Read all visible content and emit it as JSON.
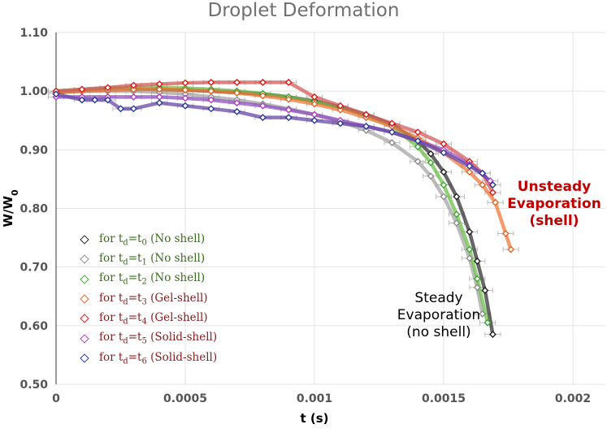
{
  "chart_data": {
    "type": "scatter",
    "title": "Droplet Deformation",
    "xlabel": "t (s)",
    "ylabel": "W/W0",
    "xlim": [
      0,
      0.002
    ],
    "ylim": [
      0.5,
      1.1
    ],
    "xticks": [
      "0",
      "0.0005",
      "0.001",
      "0.0015",
      "0.002"
    ],
    "yticks": [
      "0.50",
      "0.60",
      "0.70",
      "0.80",
      "0.90",
      "1.00",
      "1.10"
    ],
    "grid": true,
    "legend_placement": "bottom-left",
    "series": [
      {
        "name": "for td=t0 (No shell)",
        "sub": "0",
        "label_color": "#3a6b1f",
        "color": "#222222",
        "line_color": "#333333",
        "points": [
          [
            0,
            0.998
          ],
          [
            0.0001,
            1.0
          ],
          [
            0.0002,
            1.002
          ],
          [
            0.0003,
            1.003
          ],
          [
            0.0004,
            1.003
          ],
          [
            0.0005,
            1.002
          ],
          [
            0.0006,
            1.0
          ],
          [
            0.0007,
            0.998
          ],
          [
            0.0008,
            0.995
          ],
          [
            0.0009,
            0.99
          ],
          [
            0.001,
            0.983
          ],
          [
            0.0011,
            0.973
          ],
          [
            0.0012,
            0.96
          ],
          [
            0.0013,
            0.943
          ],
          [
            0.0014,
            0.915
          ],
          [
            0.00145,
            0.893
          ],
          [
            0.0015,
            0.862
          ],
          [
            0.00155,
            0.82
          ],
          [
            0.0016,
            0.76
          ],
          [
            0.00163,
            0.71
          ],
          [
            0.00166,
            0.66
          ],
          [
            0.00169,
            0.585
          ]
        ]
      },
      {
        "name": "for td=t1 (No shell)",
        "sub": "1",
        "label_color": "#3a6b1f",
        "color": "#8c8c8c",
        "line_color": "#a6a6a6",
        "points": [
          [
            0,
            1.0
          ],
          [
            0.0001,
            1.0
          ],
          [
            0.0002,
            1.0
          ],
          [
            0.0003,
            1.0
          ],
          [
            0.0004,
            0.998
          ],
          [
            0.0005,
            0.995
          ],
          [
            0.0006,
            0.99
          ],
          [
            0.0007,
            0.985
          ],
          [
            0.0008,
            0.978
          ],
          [
            0.0009,
            0.97
          ],
          [
            0.001,
            0.96
          ],
          [
            0.0011,
            0.948
          ],
          [
            0.0012,
            0.933
          ],
          [
            0.0013,
            0.912
          ],
          [
            0.0014,
            0.88
          ],
          [
            0.00145,
            0.855
          ],
          [
            0.0015,
            0.82
          ],
          [
            0.00155,
            0.775
          ],
          [
            0.0016,
            0.715
          ],
          [
            0.00163,
            0.665
          ],
          [
            0.00165,
            0.62
          ]
        ]
      },
      {
        "name": "for td=t2 (No shell)",
        "sub": "2",
        "label_color": "#3a6b1f",
        "color": "#3fa535",
        "line_color": "#6cc04a",
        "points": [
          [
            0,
            1.0
          ],
          [
            0.0001,
            1.003
          ],
          [
            0.0002,
            1.005
          ],
          [
            0.0003,
            1.006
          ],
          [
            0.0004,
            1.006
          ],
          [
            0.0005,
            1.005
          ],
          [
            0.0006,
            1.003
          ],
          [
            0.0007,
            1.0
          ],
          [
            0.0008,
            0.996
          ],
          [
            0.0009,
            0.99
          ],
          [
            0.001,
            0.982
          ],
          [
            0.0011,
            0.972
          ],
          [
            0.0012,
            0.958
          ],
          [
            0.0013,
            0.94
          ],
          [
            0.0014,
            0.905
          ],
          [
            0.00145,
            0.878
          ],
          [
            0.0015,
            0.84
          ],
          [
            0.00155,
            0.79
          ],
          [
            0.0016,
            0.73
          ],
          [
            0.00163,
            0.68
          ],
          [
            0.00167,
            0.605
          ]
        ]
      },
      {
        "name": "for td=t3 (Gel-shell)",
        "sub": "3",
        "label_color": "#8b1a1a",
        "color": "#e0662a",
        "line_color": "#f07a3a",
        "points": [
          [
            0,
            0.998
          ],
          [
            0.0001,
            1.0
          ],
          [
            0.0002,
            1.002
          ],
          [
            0.0003,
            1.003
          ],
          [
            0.0004,
            1.003
          ],
          [
            0.0005,
            1.002
          ],
          [
            0.0006,
            1.0
          ],
          [
            0.0007,
            0.997
          ],
          [
            0.0008,
            0.992
          ],
          [
            0.0009,
            0.986
          ],
          [
            0.001,
            0.978
          ],
          [
            0.0011,
            0.968
          ],
          [
            0.0012,
            0.955
          ],
          [
            0.0013,
            0.94
          ],
          [
            0.0014,
            0.92
          ],
          [
            0.0015,
            0.895
          ],
          [
            0.0016,
            0.862
          ],
          [
            0.00165,
            0.84
          ],
          [
            0.0017,
            0.81
          ],
          [
            0.00174,
            0.757
          ],
          [
            0.00176,
            0.73
          ]
        ]
      },
      {
        "name": "for td=t4 (Gel-shell)",
        "sub": "4",
        "label_color": "#8b1a1a",
        "color": "#e01818",
        "line_color": "#d45a5a",
        "points": [
          [
            0,
            1.0
          ],
          [
            0.0001,
            1.003
          ],
          [
            0.0002,
            1.006
          ],
          [
            0.0003,
            1.01
          ],
          [
            0.0004,
            1.012
          ],
          [
            0.0005,
            1.014
          ],
          [
            0.0006,
            1.015
          ],
          [
            0.0007,
            1.015
          ],
          [
            0.0008,
            1.015
          ],
          [
            0.0009,
            1.015
          ],
          [
            0.001,
            0.99
          ],
          [
            0.0011,
            0.975
          ],
          [
            0.0012,
            0.96
          ],
          [
            0.0013,
            0.945
          ],
          [
            0.0014,
            0.93
          ],
          [
            0.0015,
            0.91
          ],
          [
            0.0016,
            0.88
          ],
          [
            0.00165,
            0.86
          ],
          [
            0.00169,
            0.827
          ]
        ]
      },
      {
        "name": "for td=t5 (Solid-shell)",
        "sub": "5",
        "label_color": "#8b1a1a",
        "color": "#b040c0",
        "line_color": "#9050c0",
        "points": [
          [
            0,
            0.99
          ],
          [
            0.0001,
            0.99
          ],
          [
            0.0002,
            0.99
          ],
          [
            0.0003,
            0.99
          ],
          [
            0.0004,
            0.99
          ],
          [
            0.0005,
            0.988
          ],
          [
            0.0006,
            0.985
          ],
          [
            0.0007,
            0.98
          ],
          [
            0.0008,
            0.975
          ],
          [
            0.0009,
            0.968
          ],
          [
            0.001,
            0.96
          ],
          [
            0.0011,
            0.95
          ],
          [
            0.0012,
            0.94
          ],
          [
            0.0013,
            0.93
          ],
          [
            0.0014,
            0.915
          ],
          [
            0.0015,
            0.9
          ],
          [
            0.0016,
            0.875
          ],
          [
            0.00168,
            0.847
          ]
        ]
      },
      {
        "name": "for td=t6 (Solid-shell)",
        "sub": "6",
        "label_color": "#8b1a1a",
        "color": "#2a3a9a",
        "line_color": "#6a4aa8",
        "points": [
          [
            0,
            0.995
          ],
          [
            0.0001,
            0.985
          ],
          [
            0.00015,
            0.985
          ],
          [
            0.0002,
            0.985
          ],
          [
            0.00025,
            0.97
          ],
          [
            0.0003,
            0.97
          ],
          [
            0.0004,
            0.98
          ],
          [
            0.0005,
            0.975
          ],
          [
            0.0006,
            0.97
          ],
          [
            0.0007,
            0.965
          ],
          [
            0.0008,
            0.955
          ],
          [
            0.0009,
            0.955
          ],
          [
            0.001,
            0.95
          ],
          [
            0.0011,
            0.945
          ],
          [
            0.0012,
            0.94
          ],
          [
            0.0013,
            0.93
          ],
          [
            0.0014,
            0.915
          ],
          [
            0.0015,
            0.895
          ],
          [
            0.0016,
            0.872
          ],
          [
            0.00165,
            0.86
          ],
          [
            0.00169,
            0.84
          ]
        ]
      }
    ],
    "annotations": [
      {
        "lines": [
          "Unsteady",
          "Evaporation",
          "(shell)"
        ],
        "color": "#c00000"
      },
      {
        "lines": [
          "Steady",
          "Evaporation",
          "(no shell)"
        ],
        "color": "#000000"
      }
    ]
  }
}
